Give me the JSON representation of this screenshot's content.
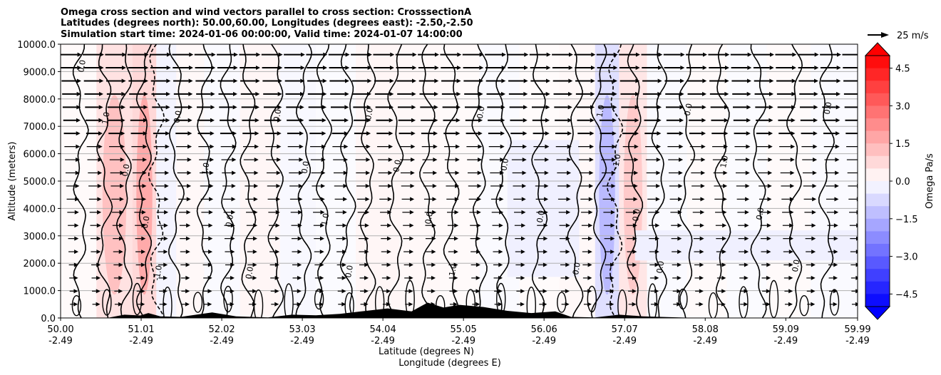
{
  "chart_data": {
    "type": "heatmap",
    "title_lines": [
      "Omega cross section and wind vectors parallel to cross section: CrosssectionA",
      "Latitudes (degrees north): 50.00,60.00, Longitudes (degrees east): -2.50,-2.50",
      "Simulation start time: 2024-01-06 00:00:00, Valid time: 2024-01-07 14:00:00"
    ],
    "ylabel": "Altitude (meters)",
    "xlabel_lines": [
      "Latitude (degrees N)",
      "Longitude (degrees E)"
    ],
    "ylim": [
      0,
      10000
    ],
    "y_ticks": [
      "0.0",
      "1000.0",
      "2000.0",
      "3000.0",
      "4000.0",
      "5000.0",
      "6000.0",
      "7000.0",
      "8000.0",
      "9000.0",
      "10000.0"
    ],
    "x_ticks": [
      {
        "lat": "50.00",
        "lon": "-2.49"
      },
      {
        "lat": "51.01",
        "lon": "-2.49"
      },
      {
        "lat": "52.02",
        "lon": "-2.49"
      },
      {
        "lat": "53.03",
        "lon": "-2.49"
      },
      {
        "lat": "54.04",
        "lon": "-2.49"
      },
      {
        "lat": "55.05",
        "lon": "-2.49"
      },
      {
        "lat": "56.06",
        "lon": "-2.49"
      },
      {
        "lat": "57.07",
        "lon": "-2.49"
      },
      {
        "lat": "58.08",
        "lon": "-2.49"
      },
      {
        "lat": "59.09",
        "lon": "-2.49"
      },
      {
        "lat": "59.99",
        "lon": "-2.49"
      }
    ],
    "xlim": [
      50.0,
      59.99
    ],
    "grid": "horizontal",
    "colorbar": {
      "label": "Omega Pa/s",
      "range": [
        -5.0,
        5.0
      ],
      "tick_labels": [
        "4.5",
        "3.0",
        "1.5",
        "0.0",
        "−1.5",
        "−3.0",
        "−4.5"
      ],
      "tick_values": [
        4.5,
        3.0,
        1.5,
        0.0,
        -1.5,
        -3.0,
        -4.5
      ],
      "levels": 20,
      "colormap": "bwr",
      "extend": "both"
    },
    "quiver_key": {
      "label": "25 m/s",
      "value": 25
    },
    "contour_labels": [
      "0.0",
      "1.0",
      "-1.0"
    ],
    "columns": [
      {
        "lat": 50.2,
        "omega": 0.3
      },
      {
        "lat": 50.7,
        "omega": 1.6
      },
      {
        "lat": 51.1,
        "omega": 2.2
      },
      {
        "lat": 51.3,
        "omega": -0.6
      },
      {
        "lat": 51.6,
        "omega": 0.4
      },
      {
        "lat": 52.0,
        "omega": -0.3
      },
      {
        "lat": 52.5,
        "omega": 0.5
      },
      {
        "lat": 53.0,
        "omega": -0.4
      },
      {
        "lat": 53.4,
        "omega": -0.2
      },
      {
        "lat": 54.0,
        "omega": 0.5
      },
      {
        "lat": 54.5,
        "omega": 0.4
      },
      {
        "lat": 55.0,
        "omega": 0.3
      },
      {
        "lat": 55.5,
        "omega": -0.3
      },
      {
        "lat": 56.0,
        "omega": 0.2
      },
      {
        "lat": 56.5,
        "omega": 0.4
      },
      {
        "lat": 56.9,
        "omega": -1.8
      },
      {
        "lat": 57.1,
        "omega": 1.4
      },
      {
        "lat": 57.6,
        "omega": -0.3
      },
      {
        "lat": 58.1,
        "omega": 0.3
      },
      {
        "lat": 58.6,
        "omega": -0.2
      },
      {
        "lat": 59.1,
        "omega": 0.3
      },
      {
        "lat": 59.7,
        "omega": -0.3
      }
    ],
    "terrain": [
      {
        "lat": 50.0,
        "z": 0
      },
      {
        "lat": 50.6,
        "z": 10
      },
      {
        "lat": 50.8,
        "z": 120
      },
      {
        "lat": 51.0,
        "z": 90
      },
      {
        "lat": 51.1,
        "z": 180
      },
      {
        "lat": 51.25,
        "z": 60
      },
      {
        "lat": 51.5,
        "z": 40
      },
      {
        "lat": 51.9,
        "z": 200
      },
      {
        "lat": 52.2,
        "z": 60
      },
      {
        "lat": 52.6,
        "z": 20
      },
      {
        "lat": 52.9,
        "z": 120
      },
      {
        "lat": 53.2,
        "z": 100
      },
      {
        "lat": 53.5,
        "z": 150
      },
      {
        "lat": 53.8,
        "z": 250
      },
      {
        "lat": 54.1,
        "z": 350
      },
      {
        "lat": 54.4,
        "z": 240
      },
      {
        "lat": 54.6,
        "z": 560
      },
      {
        "lat": 54.8,
        "z": 380
      },
      {
        "lat": 55.0,
        "z": 480
      },
      {
        "lat": 55.3,
        "z": 400
      },
      {
        "lat": 55.6,
        "z": 260
      },
      {
        "lat": 55.9,
        "z": 180
      },
      {
        "lat": 56.2,
        "z": 240
      },
      {
        "lat": 56.4,
        "z": 40
      },
      {
        "lat": 56.7,
        "z": 20
      },
      {
        "lat": 57.0,
        "z": 120
      },
      {
        "lat": 57.3,
        "z": 60
      },
      {
        "lat": 57.6,
        "z": 30
      },
      {
        "lat": 58.0,
        "z": 0
      },
      {
        "lat": 59.99,
        "z": 0
      }
    ]
  }
}
